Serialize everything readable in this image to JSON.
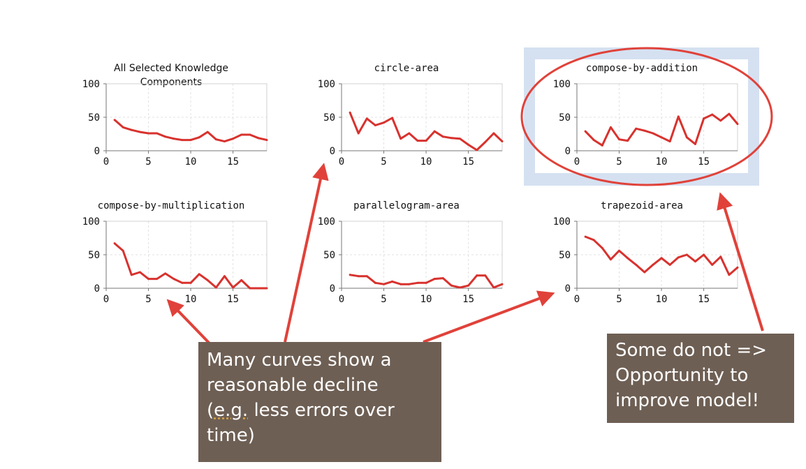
{
  "colors": {
    "line": "#d8322e",
    "arrow": "#e0423a",
    "highlight_box": "#d5e1f1",
    "callout_bg": "#6e5f54",
    "grid": "#e2e2e2"
  },
  "chart_data": [
    {
      "type": "line",
      "title_lines": [
        "All Selected Knowledge",
        "Components"
      ],
      "x": [
        1,
        2,
        3,
        4,
        5,
        6,
        7,
        8,
        9,
        10,
        11,
        12,
        13,
        14,
        15,
        16,
        17,
        18,
        19
      ],
      "values": [
        46,
        35,
        31,
        28,
        26,
        26,
        21,
        18,
        16,
        16,
        20,
        28,
        17,
        14,
        18,
        24,
        24,
        19,
        16
      ],
      "xlim": [
        0,
        19
      ],
      "ylim": [
        0,
        100
      ],
      "xticks": [
        "0",
        "5",
        "10",
        "15"
      ],
      "yticks": [
        "0",
        "50",
        "100"
      ],
      "grid": true
    },
    {
      "type": "line",
      "title_lines": [
        "circle-area"
      ],
      "x": [
        1,
        2,
        3,
        4,
        5,
        6,
        7,
        8,
        9,
        10,
        11,
        12,
        13,
        14,
        15,
        16,
        17,
        18,
        19
      ],
      "values": [
        57,
        26,
        48,
        38,
        42,
        49,
        18,
        26,
        15,
        15,
        29,
        21,
        19,
        18,
        9,
        1,
        13,
        26,
        14
      ],
      "xlim": [
        0,
        19
      ],
      "ylim": [
        0,
        100
      ],
      "xticks": [
        "0",
        "5",
        "10",
        "15"
      ],
      "yticks": [
        "0",
        "50",
        "100"
      ],
      "grid": true
    },
    {
      "type": "line",
      "title_lines": [
        "compose-by-addition"
      ],
      "x": [
        1,
        2,
        3,
        4,
        5,
        6,
        7,
        8,
        9,
        10,
        11,
        12,
        13,
        14,
        15,
        16,
        17,
        18,
        19
      ],
      "values": [
        29,
        16,
        8,
        35,
        17,
        15,
        33,
        30,
        26,
        20,
        14,
        51,
        20,
        10,
        48,
        54,
        45,
        55,
        40
      ],
      "xlim": [
        0,
        19
      ],
      "ylim": [
        0,
        100
      ],
      "xticks": [
        "0",
        "5",
        "10",
        "15"
      ],
      "yticks": [
        "0",
        "50",
        "100"
      ],
      "grid": true
    },
    {
      "type": "line",
      "title_lines": [
        "compose-by-multiplication"
      ],
      "x": [
        1,
        2,
        3,
        4,
        5,
        6,
        7,
        8,
        9,
        10,
        11,
        12,
        13,
        14,
        15,
        16,
        17,
        18,
        19
      ],
      "values": [
        67,
        56,
        20,
        24,
        14,
        14,
        22,
        14,
        8,
        8,
        21,
        12,
        1,
        18,
        1,
        12,
        0,
        0,
        0
      ],
      "xlim": [
        0,
        19
      ],
      "ylim": [
        0,
        100
      ],
      "xticks": [
        "0",
        "5",
        "10",
        "15"
      ],
      "yticks": [
        "0",
        "50",
        "100"
      ],
      "grid": true
    },
    {
      "type": "line",
      "title_lines": [
        "parallelogram-area"
      ],
      "x": [
        1,
        2,
        3,
        4,
        5,
        6,
        7,
        8,
        9,
        10,
        11,
        12,
        13,
        14,
        15,
        16,
        17,
        18,
        19
      ],
      "values": [
        20,
        18,
        18,
        8,
        6,
        10,
        6,
        6,
        8,
        8,
        14,
        15,
        4,
        1,
        4,
        19,
        19,
        1,
        6
      ],
      "xlim": [
        0,
        19
      ],
      "ylim": [
        0,
        100
      ],
      "xticks": [
        "0",
        "5",
        "10",
        "15"
      ],
      "yticks": [
        "0",
        "50",
        "100"
      ],
      "grid": true
    },
    {
      "type": "line",
      "title_lines": [
        "trapezoid-area"
      ],
      "x": [
        1,
        2,
        3,
        4,
        5,
        6,
        7,
        8,
        9,
        10,
        11,
        12,
        13,
        14,
        15,
        16,
        17,
        18,
        19
      ],
      "values": [
        77,
        72,
        60,
        43,
        56,
        45,
        35,
        24,
        35,
        45,
        35,
        46,
        50,
        40,
        50,
        35,
        47,
        20,
        31
      ],
      "xlim": [
        0,
        19
      ],
      "ylim": [
        0,
        100
      ],
      "xticks": [
        "0",
        "5",
        "10",
        "15"
      ],
      "yticks": [
        "0",
        "50",
        "100"
      ],
      "grid": true
    }
  ],
  "callouts": {
    "left": {
      "line1": "Many curves show a",
      "line2": "reasonable decline",
      "eg": "e.g.",
      "line3_open": "(",
      "line3_rest": " less errors over",
      "line4": "time)"
    },
    "right": {
      "line1": "Some do not =>",
      "line2": "Opportunity to",
      "line3": "improve model!"
    }
  }
}
